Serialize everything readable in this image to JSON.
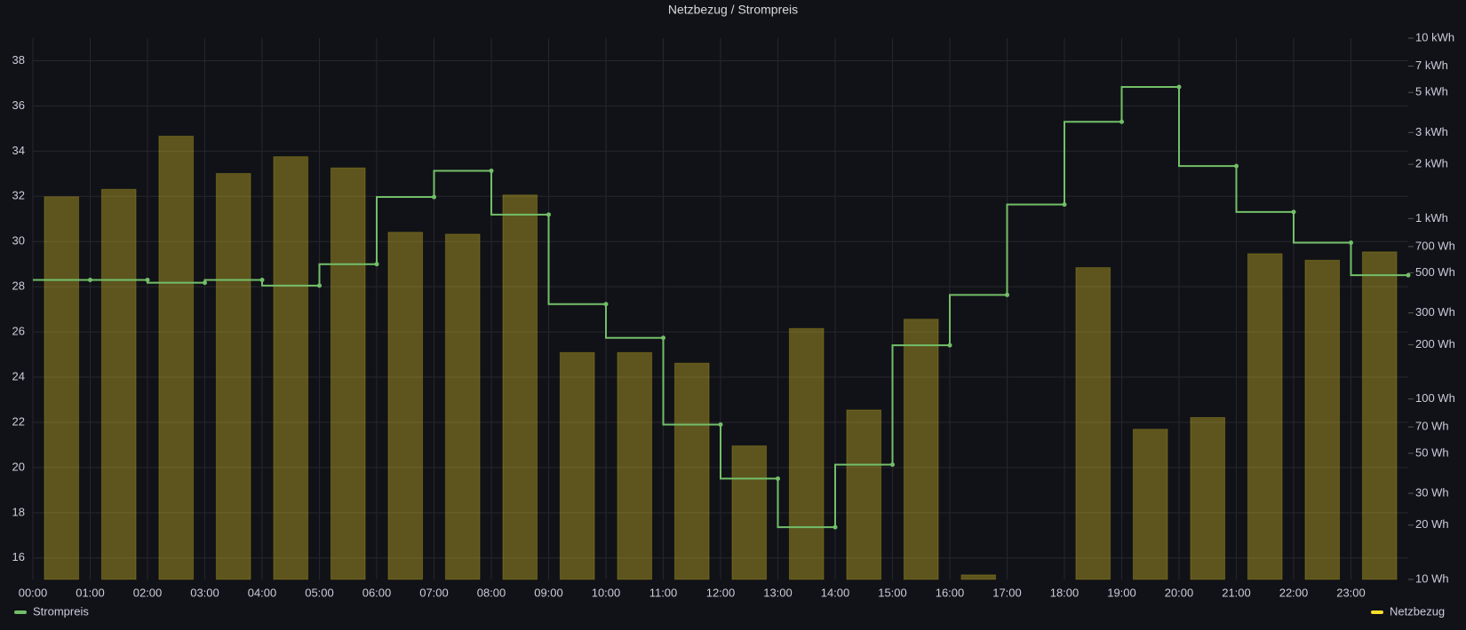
{
  "chart_data": {
    "type": "combo",
    "title": "Netzbezug / Strompreis",
    "categories": [
      "00:00",
      "01:00",
      "02:00",
      "03:00",
      "04:00",
      "05:00",
      "06:00",
      "07:00",
      "08:00",
      "09:00",
      "10:00",
      "11:00",
      "12:00",
      "13:00",
      "14:00",
      "15:00",
      "16:00",
      "17:00",
      "18:00",
      "19:00",
      "20:00",
      "21:00",
      "22:00",
      "23:00"
    ],
    "series": [
      {
        "name": "Strompreis",
        "type": "line",
        "step": true,
        "color": "#73bf69",
        "values": [
          28.3,
          28.3,
          28.18,
          28.3,
          28.05,
          29.0,
          31.97,
          33.13,
          31.19,
          27.23,
          25.74,
          21.9,
          19.51,
          17.36,
          20.13,
          25.41,
          27.64,
          31.64,
          35.3,
          36.84,
          33.34,
          31.31,
          29.95,
          28.51
        ]
      },
      {
        "name": "Netzbezug",
        "type": "bar",
        "axis": "y2",
        "color": "#fade2a",
        "values": [
          1321,
          1453,
          2864,
          1778,
          2203,
          1910,
          840,
          820,
          1352,
          181,
          181,
          158,
          55,
          246,
          87,
          277,
          10.6,
          null,
          535,
          68,
          79,
          639,
          588,
          654
        ]
      }
    ],
    "ylim": [
      15.05,
      39
    ],
    "yticks": [
      16,
      18,
      20,
      22,
      24,
      26,
      28,
      30,
      32,
      34,
      36,
      38
    ],
    "y2lim": [
      10,
      10000
    ],
    "y2log": true,
    "y2ticks": [
      {
        "value": 10,
        "label": "10 Wh"
      },
      {
        "value": 20,
        "label": "20 Wh"
      },
      {
        "value": 30,
        "label": "30 Wh"
      },
      {
        "value": 50,
        "label": "50 Wh"
      },
      {
        "value": 70,
        "label": "70 Wh"
      },
      {
        "value": 100,
        "label": "100 Wh"
      },
      {
        "value": 200,
        "label": "200 Wh"
      },
      {
        "value": 300,
        "label": "300 Wh"
      },
      {
        "value": 500,
        "label": "500 Wh"
      },
      {
        "value": 700,
        "label": "700 Wh"
      },
      {
        "value": 1000,
        "label": "1 kWh"
      },
      {
        "value": 2000,
        "label": "2 kWh"
      },
      {
        "value": 3000,
        "label": "3 kWh"
      },
      {
        "value": 5000,
        "label": "5 kWh"
      },
      {
        "value": 7000,
        "label": "7 kWh"
      },
      {
        "value": 10000,
        "label": "10 kWh"
      }
    ],
    "grid": true
  }
}
